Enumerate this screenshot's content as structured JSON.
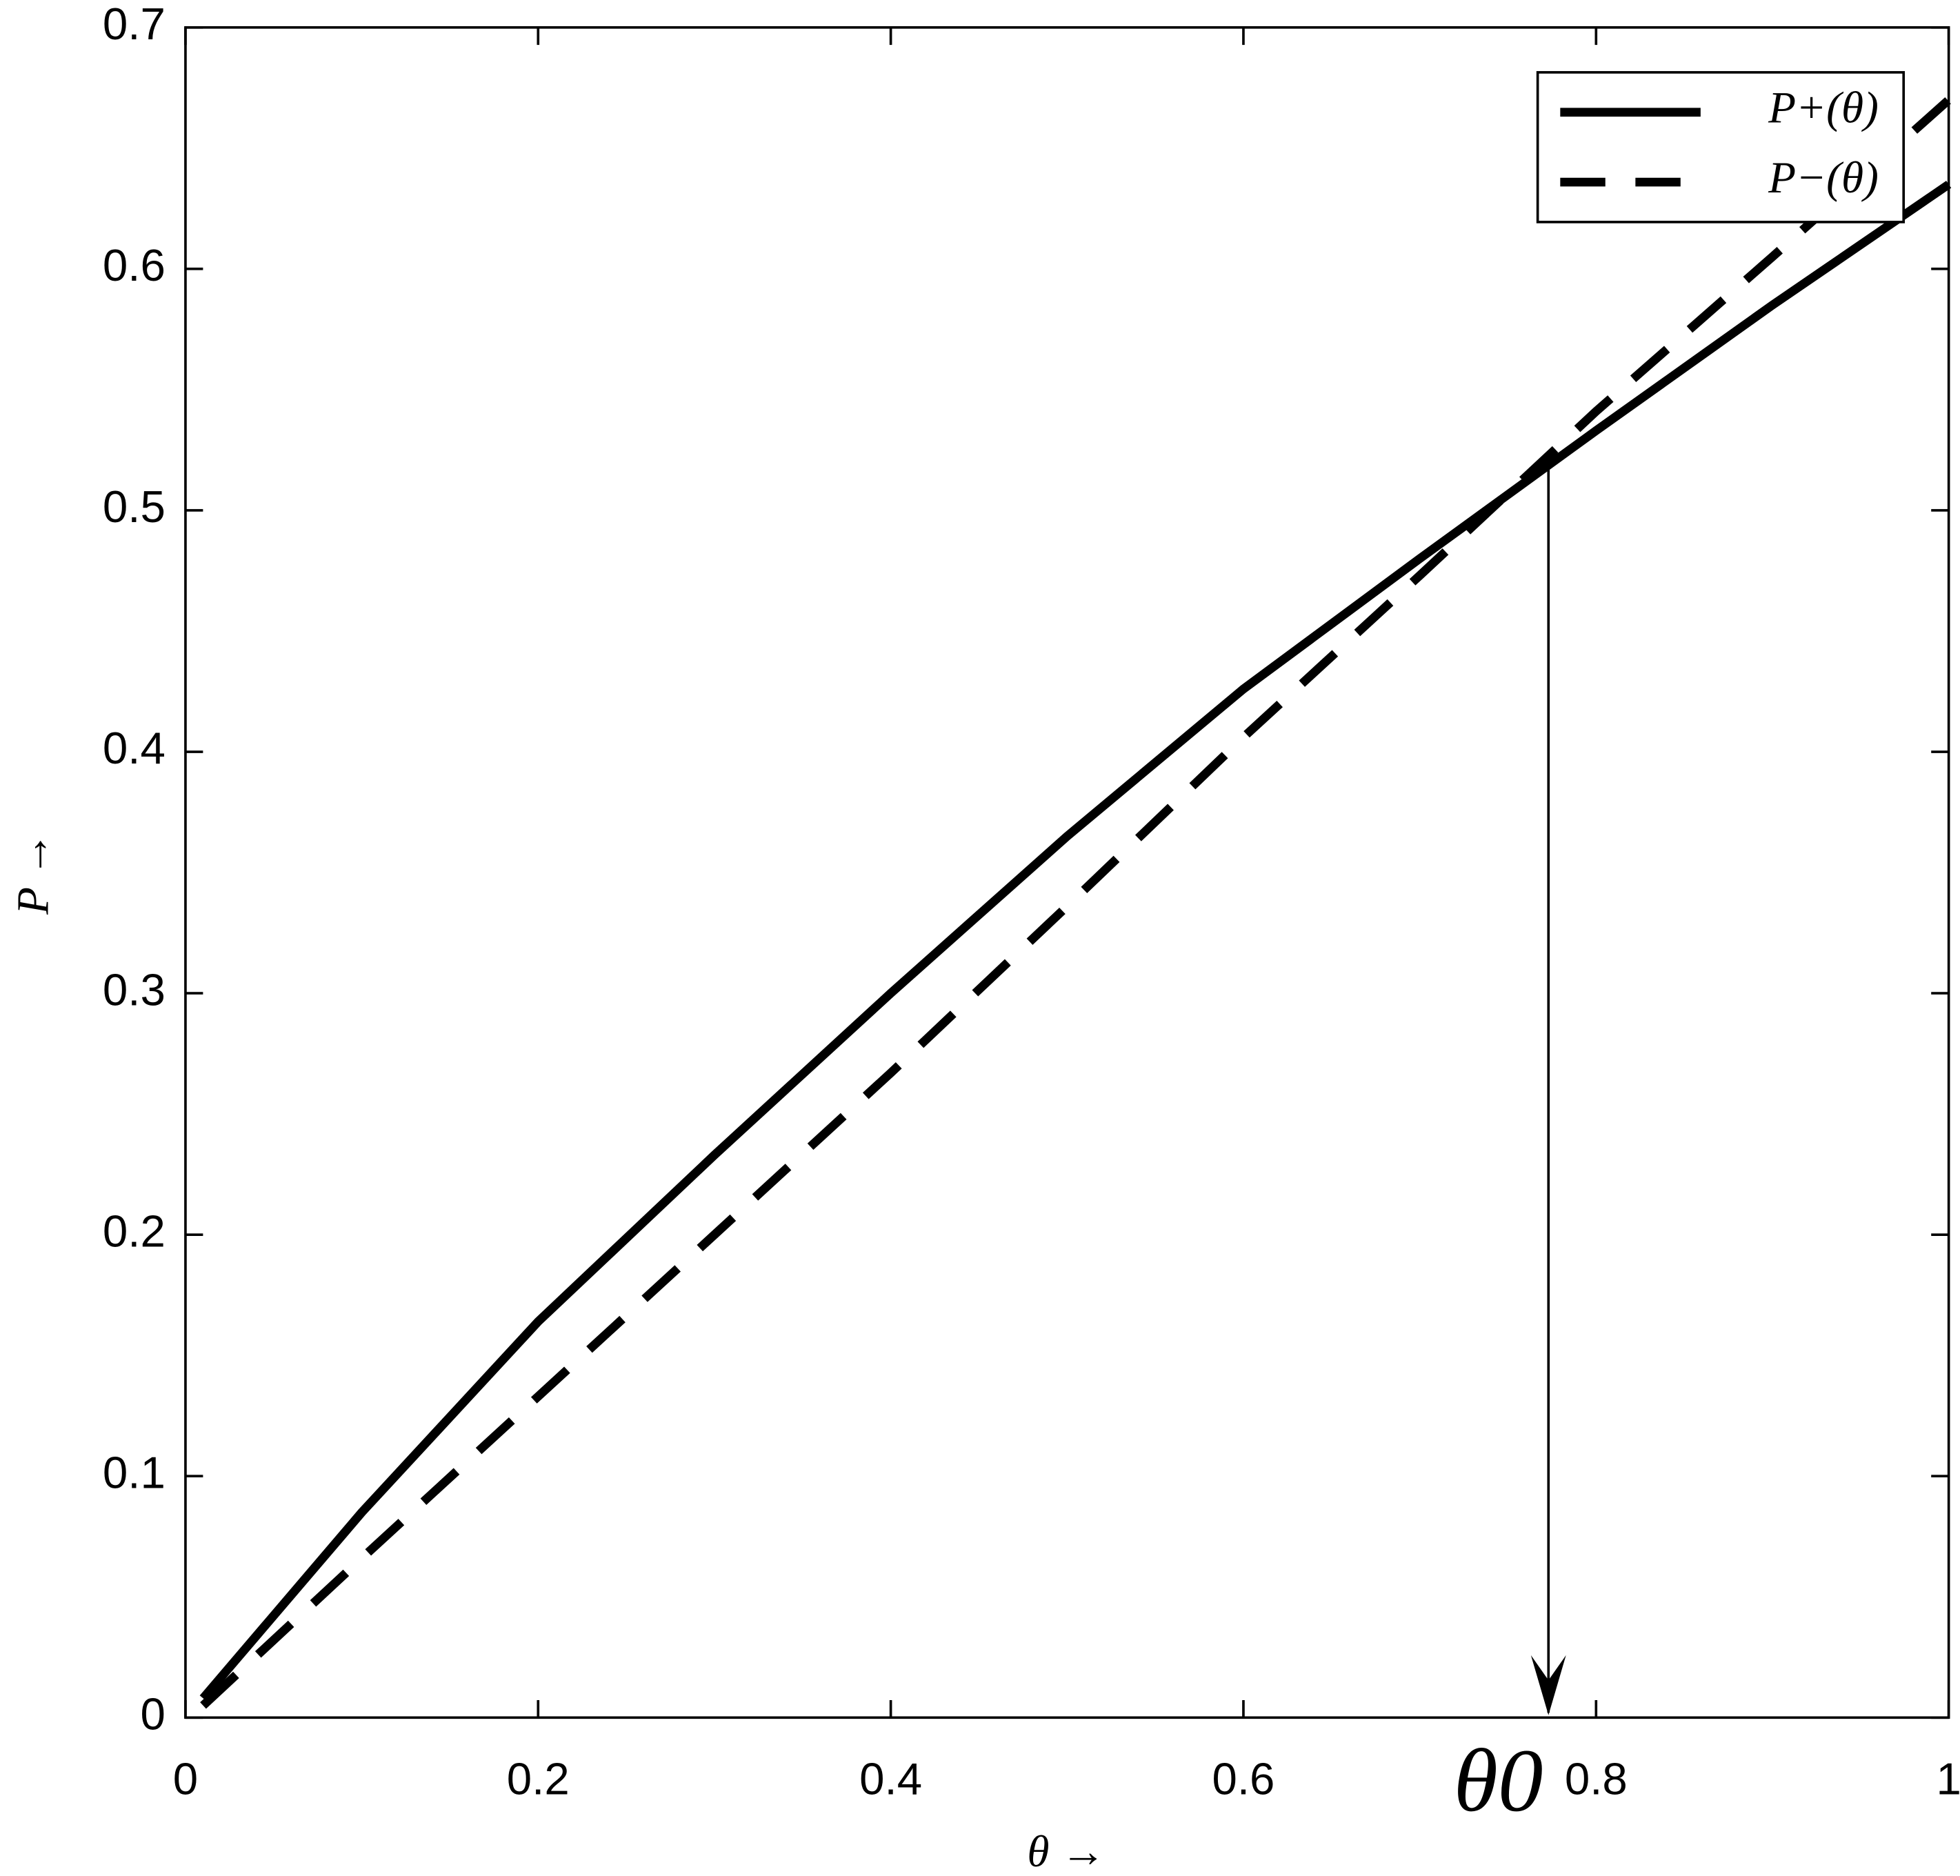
{
  "chart_data": {
    "type": "line",
    "xlabel": "θ →",
    "ylabel": "P →",
    "x": [
      0.01,
      0.1,
      0.2,
      0.3,
      0.4,
      0.5,
      0.6,
      0.7,
      0.8,
      0.9,
      1
    ],
    "series": [
      {
        "name": "P+(θ)",
        "color": "#000000",
        "dash": "solid",
        "values": [
          0.008,
          0.085,
          0.164,
          0.233,
          0.3,
          0.365,
          0.426,
          0.48,
          0.533,
          0.585,
          0.635
        ]
      },
      {
        "name": "P−(θ)",
        "color": "#000000",
        "dash": "dashed",
        "values": [
          0.005,
          0.066,
          0.133,
          0.2,
          0.267,
          0.336,
          0.406,
          0.473,
          0.541,
          0.605,
          0.67
        ]
      }
    ],
    "xlim": [
      0,
      1
    ],
    "ylim": [
      0,
      0.7
    ],
    "xticks": [
      0,
      0.2,
      0.4,
      0.6,
      0.8,
      1
    ],
    "yticks": [
      0,
      0.1,
      0.2,
      0.3,
      0.4,
      0.5,
      0.6,
      0.7
    ],
    "legend": "upper right",
    "annotation": {
      "text": "θ0",
      "x": 0.773,
      "y": 0.52
    }
  }
}
